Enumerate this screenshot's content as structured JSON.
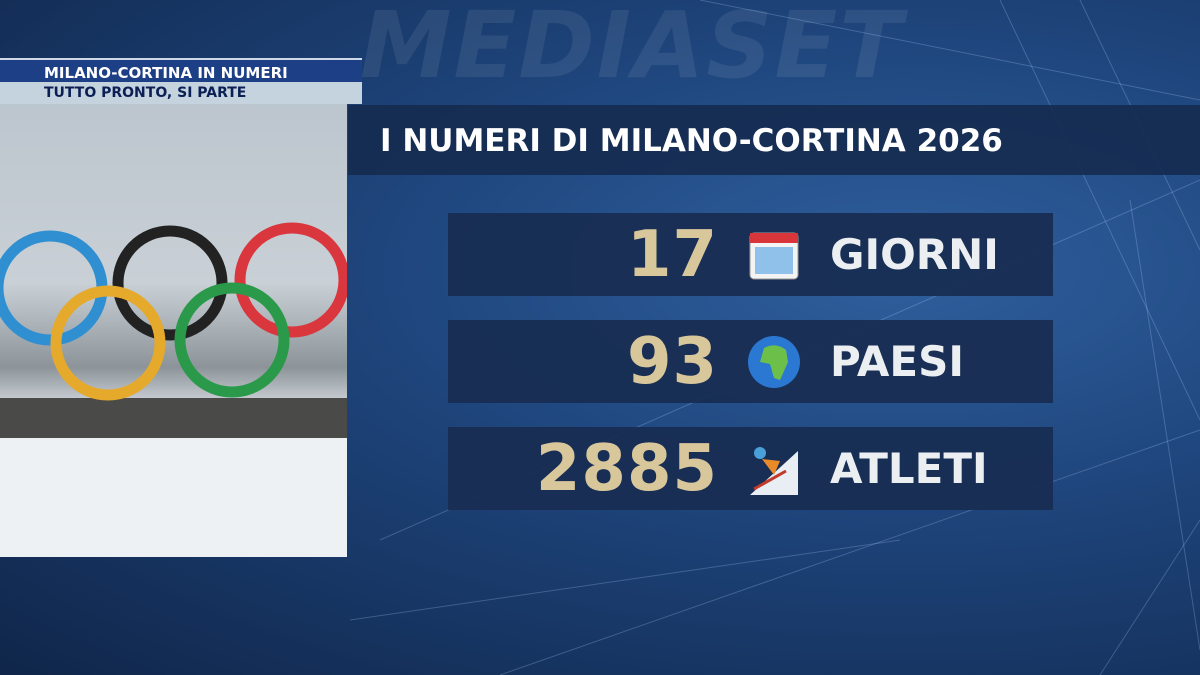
{
  "watermark": "MEDIASET",
  "lower_third": {
    "headline": "MILANO-CORTINA IN NUMERI",
    "subheadline": "TUTTO PRONTO, SI PARTE"
  },
  "title": "I NUMERI DI MILANO-CORTINA 2026",
  "stats": [
    {
      "value": "17",
      "icon": "calendar-icon",
      "label": "GIORNI"
    },
    {
      "value": "93",
      "icon": "globe-icon",
      "label": "PAESI"
    },
    {
      "value": "2885",
      "icon": "skier-icon",
      "label": "ATLETI"
    }
  ],
  "colors": {
    "number": "#d9c79c",
    "panel": "#182d52",
    "headline_bar": "#1d3f86",
    "sub_bar": "#c4d3de"
  }
}
